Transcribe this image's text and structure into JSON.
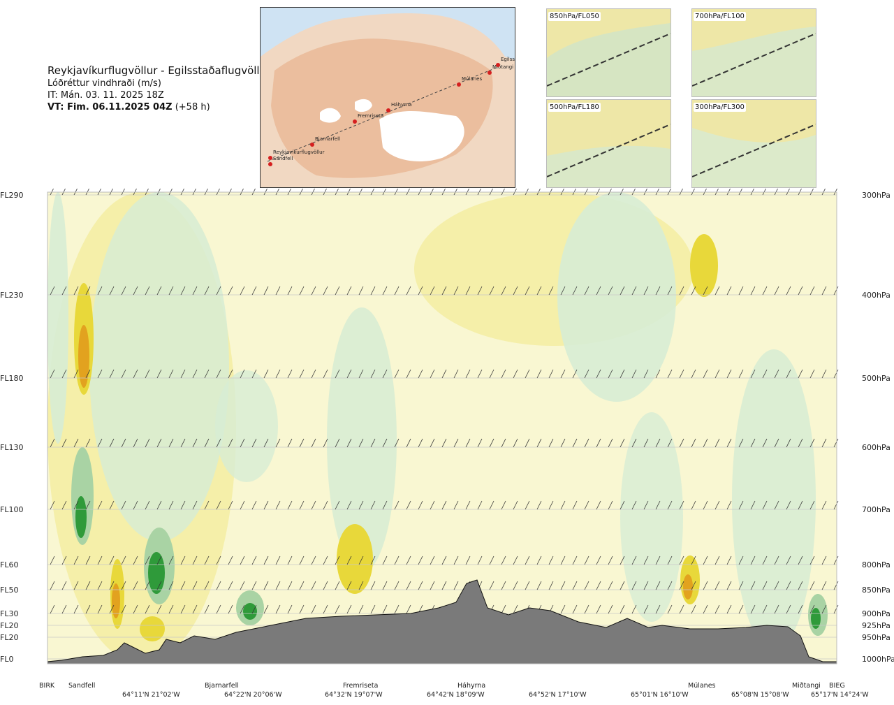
{
  "header": {
    "title": "Reykjavíkurflugvöllur - Egilsstaðaflugvöllur",
    "subtitle": "Lóðréttur vindhraði (m/s)",
    "issue_time": "IT: Mán. 03. 11. 2025 18Z",
    "valid_bold": "VT: Fim. 06.11.2025 04Z",
    "valid_offset": "(+58 h)"
  },
  "map": {
    "route_points": [
      {
        "name": "Sandfell"
      },
      {
        "name": "Reykjavíkurflugvöllur"
      },
      {
        "name": "Bjarnarfell"
      },
      {
        "name": "Fremriseta"
      },
      {
        "name": "Háhyrna"
      },
      {
        "name": "Múlanes"
      },
      {
        "name": "Miðtangi"
      },
      {
        "name": "Egilssta"
      }
    ]
  },
  "insets": [
    {
      "label": "850hPa/FL050"
    },
    {
      "label": "700hPa/FL100"
    },
    {
      "label": "500hPa/FL180"
    },
    {
      "label": "300hPa/FL300"
    }
  ],
  "chart_data": {
    "type": "heatmap",
    "title": "Lóðréttur vindhraði (m/s)",
    "y_left_levels": [
      {
        "label": "FL290"
      },
      {
        "label": "FL230"
      },
      {
        "label": "FL180"
      },
      {
        "label": "FL130"
      },
      {
        "label": "FL100"
      },
      {
        "label": "FL60"
      },
      {
        "label": "FL50"
      },
      {
        "label": "FL30"
      },
      {
        "label": "FL20"
      },
      {
        "label": "FL20"
      },
      {
        "label": "FL0"
      }
    ],
    "y_right_levels": [
      {
        "label": "300hPa",
        "hpa": 300
      },
      {
        "label": "400hPa",
        "hpa": 400
      },
      {
        "label": "500hPa",
        "hpa": 500
      },
      {
        "label": "600hPa",
        "hpa": 600
      },
      {
        "label": "700hPa",
        "hpa": 700
      },
      {
        "label": "800hPa",
        "hpa": 800
      },
      {
        "label": "850hPa",
        "hpa": 850
      },
      {
        "label": "900hPa",
        "hpa": 900
      },
      {
        "label": "925hPa",
        "hpa": 925
      },
      {
        "label": "950hPa",
        "hpa": 950
      },
      {
        "label": "1000hPa",
        "hpa": 1000
      }
    ],
    "x_locations": [
      {
        "name": "BIRK",
        "pos": 0.0
      },
      {
        "name": "Sandfell",
        "pos": 0.04
      },
      {
        "name": "Bjarnarfell",
        "pos": 0.2
      },
      {
        "name": "Fremriseta",
        "pos": 0.39
      },
      {
        "name": "Háhyrna",
        "pos": 0.6
      },
      {
        "name": "Múlanes",
        "pos": 0.85
      },
      {
        "name": "Miðtangi",
        "pos": 0.96
      },
      {
        "name": "BIEG",
        "pos": 1.0
      }
    ],
    "x_coords": [
      {
        "text": "64°11'N 21°02'W",
        "pos": 0.12
      },
      {
        "text": "64°22'N 20°06'W",
        "pos": 0.25
      },
      {
        "text": "64°32'N 19°07'W",
        "pos": 0.38
      },
      {
        "text": "64°42'N 18°09'W",
        "pos": 0.5
      },
      {
        "text": "64°52'N 17°10'W",
        "pos": 0.63
      },
      {
        "text": "65°01'N 16°10'W",
        "pos": 0.76
      },
      {
        "text": "65°08'N 15°08'W",
        "pos": 0.88
      },
      {
        "text": "65°17'N 14°24'W",
        "pos": 0.99
      }
    ],
    "color_scale": {
      "strong_up_orange": "#e2a21f",
      "up_yellow": "#e8d83a",
      "weak_up": "#f4eda4",
      "neutral": "#f9f7d2",
      "weak_down": "#d7ecd4",
      "down": "#a9d3a4",
      "strong_down": "#2f9a3a"
    },
    "terrain_color": "#7a7a7a"
  }
}
